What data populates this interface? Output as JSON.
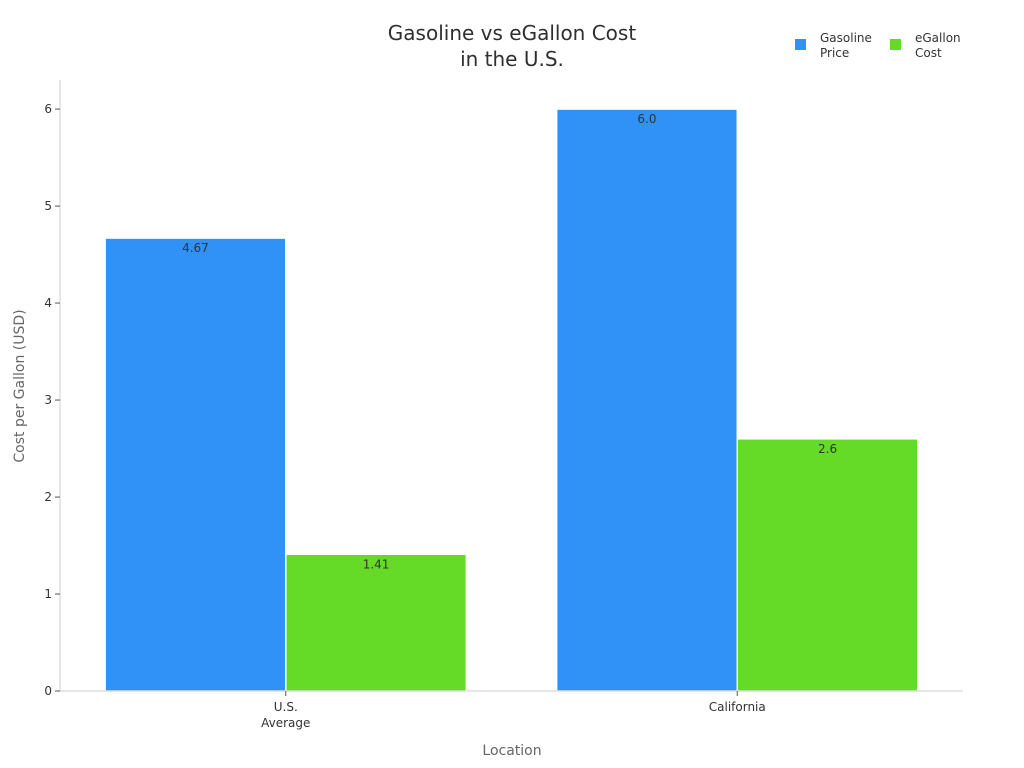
{
  "chart_data": {
    "type": "bar",
    "title": [
      "Gasoline vs eGallon Cost",
      "in the U.S."
    ],
    "xlabel": "Location",
    "ylabel": "Cost per Gallon (USD)",
    "categories": [
      [
        "U.S.",
        "Average"
      ],
      [
        "California"
      ]
    ],
    "series": [
      {
        "name": [
          "Gasoline",
          "Price"
        ],
        "values": [
          4.67,
          6.0
        ],
        "labels": [
          "4.67",
          "6.0"
        ],
        "color": "#3092f7"
      },
      {
        "name": [
          "eGallon",
          "Cost"
        ],
        "values": [
          1.41,
          2.6
        ],
        "labels": [
          "1.41",
          "2.6"
        ],
        "color": "#66db27"
      }
    ],
    "ylim": [
      0,
      6.3
    ],
    "yticks": [
      0,
      1,
      2,
      3,
      4,
      5,
      6
    ],
    "grid": false,
    "legend_position": "top-right"
  }
}
